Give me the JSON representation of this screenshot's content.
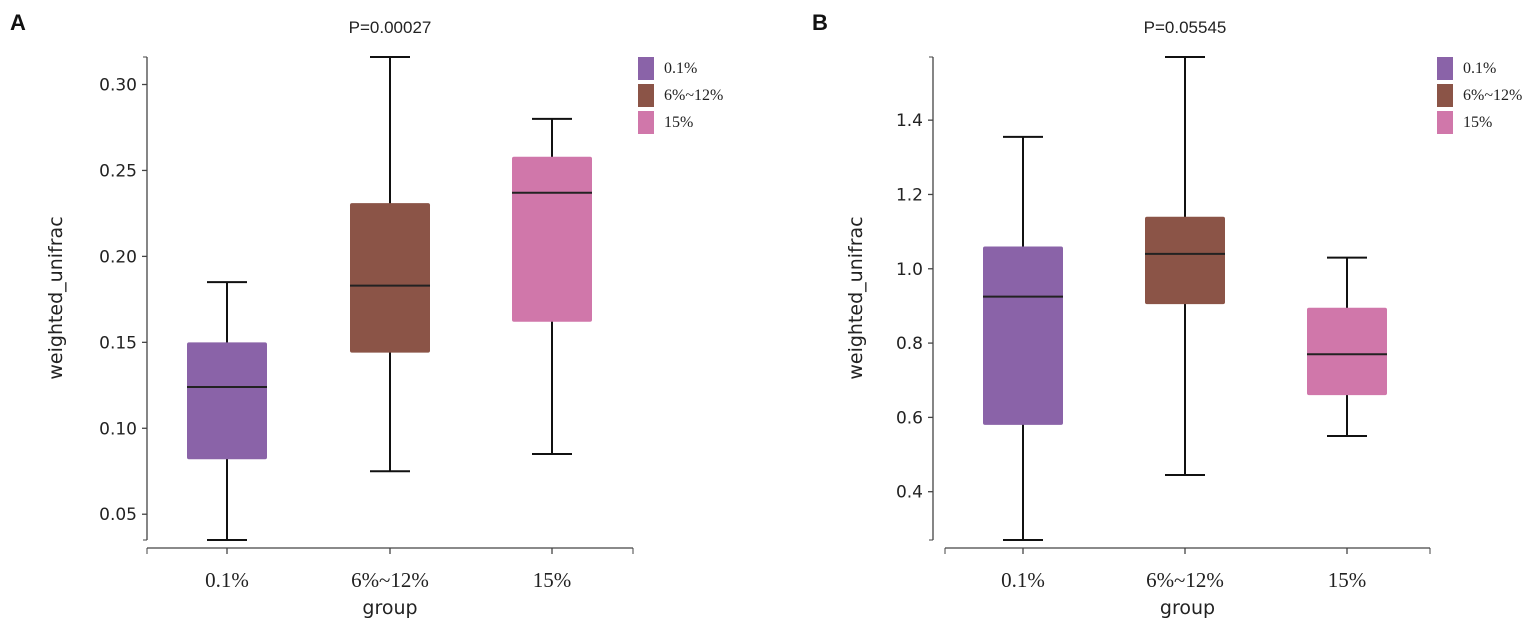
{
  "chart_data": [
    {
      "type": "box",
      "panel_label": "A",
      "title": "P=0.00027",
      "xlabel": "group",
      "ylabel": "weighted_unifrac",
      "ylim": [
        0.035,
        0.316
      ],
      "yticks": [
        0.05,
        0.1,
        0.15,
        0.2,
        0.25,
        0.3
      ],
      "ytick_labels": [
        "0.05",
        "0.10",
        "0.15",
        "0.20",
        "0.25",
        "0.30"
      ],
      "categories": [
        "0.1%",
        "6%~12%",
        "15%"
      ],
      "legend": [
        "0.1%",
        "6%~12%",
        "15%"
      ],
      "legend_position": "top-right",
      "series": [
        {
          "name": "0.1%",
          "color": "#8a63a8",
          "min": 0.035,
          "q1": 0.082,
          "median": 0.124,
          "q3": 0.15,
          "max": 0.185
        },
        {
          "name": "6%~12%",
          "color": "#8b5447",
          "min": 0.075,
          "q1": 0.144,
          "median": 0.183,
          "q3": 0.231,
          "max": 0.316
        },
        {
          "name": "15%",
          "color": "#d077aa",
          "min": 0.085,
          "q1": 0.162,
          "median": 0.237,
          "q3": 0.258,
          "max": 0.28
        }
      ]
    },
    {
      "type": "box",
      "panel_label": "B",
      "title": "P=0.05545",
      "xlabel": "group",
      "ylabel": "weighted_unifrac",
      "ylim": [
        0.27,
        1.57
      ],
      "yticks": [
        0.4,
        0.6,
        0.8,
        1.0,
        1.2,
        1.4
      ],
      "ytick_labels": [
        "0.4",
        "0.6",
        "0.8",
        "1.0",
        "1.2",
        "1.4"
      ],
      "categories": [
        "0.1%",
        "6%~12%",
        "15%"
      ],
      "legend": [
        "0.1%",
        "6%~12%",
        "15%"
      ],
      "legend_position": "top-right",
      "series": [
        {
          "name": "0.1%",
          "color": "#8a63a8",
          "min": 0.27,
          "q1": 0.58,
          "median": 0.925,
          "q3": 1.06,
          "max": 1.355
        },
        {
          "name": "6%~12%",
          "color": "#8b5447",
          "min": 0.445,
          "q1": 0.905,
          "median": 1.04,
          "q3": 1.14,
          "max": 1.57
        },
        {
          "name": "15%",
          "color": "#d077aa",
          "min": 0.55,
          "q1": 0.66,
          "median": 0.77,
          "q3": 0.895,
          "max": 1.03
        }
      ]
    }
  ]
}
